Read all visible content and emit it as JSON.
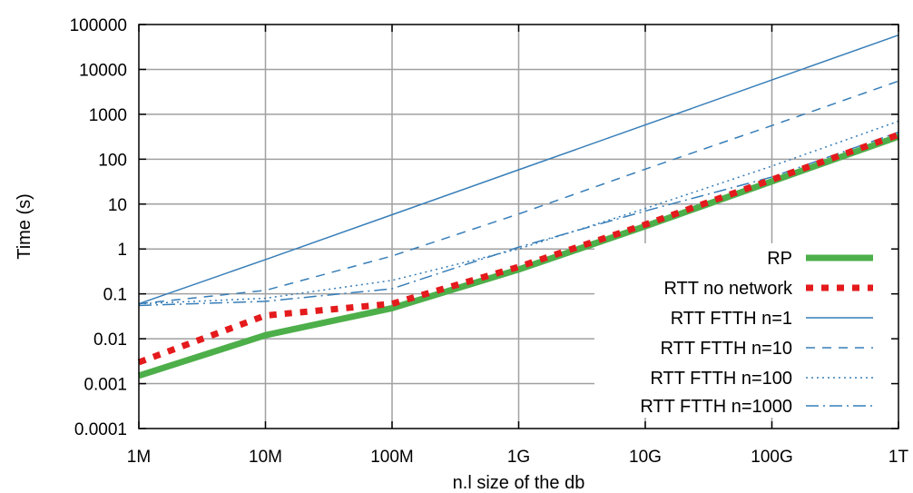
{
  "chart_data": {
    "type": "line",
    "xlabel": "n.l size of the db",
    "ylabel": "Time (s)",
    "x_scale": "log",
    "y_scale": "log",
    "xlim": [
      1000000,
      1000000000000
    ],
    "ylim": [
      0.0001,
      100000
    ],
    "grid": true,
    "legend_position": "bottom-right",
    "x_ticks": [
      {
        "value": 1000000,
        "label": "1M"
      },
      {
        "value": 10000000,
        "label": "10M"
      },
      {
        "value": 100000000,
        "label": "100M"
      },
      {
        "value": 1000000000,
        "label": "1G"
      },
      {
        "value": 10000000000,
        "label": "10G"
      },
      {
        "value": 100000000000,
        "label": "100G"
      },
      {
        "value": 1000000000000,
        "label": "1T"
      }
    ],
    "y_ticks": [
      {
        "value": 0.0001,
        "label": "0.0001"
      },
      {
        "value": 0.001,
        "label": "0.001"
      },
      {
        "value": 0.01,
        "label": "0.01"
      },
      {
        "value": 0.1,
        "label": "0.1"
      },
      {
        "value": 1,
        "label": "1"
      },
      {
        "value": 10,
        "label": "10"
      },
      {
        "value": 100,
        "label": "100"
      },
      {
        "value": 1000,
        "label": "1000"
      },
      {
        "value": 10000,
        "label": "10000"
      },
      {
        "value": 100000,
        "label": "100000"
      }
    ],
    "series": [
      {
        "name": "RP",
        "color": "#4daf4a",
        "style": "solid-thick",
        "points": [
          [
            1000000,
            0.0015
          ],
          [
            10000000,
            0.012
          ],
          [
            100000000,
            0.048
          ],
          [
            1000000000,
            0.35
          ],
          [
            10000000000,
            3.2
          ],
          [
            100000000000,
            32
          ],
          [
            1000000000000,
            320
          ]
        ]
      },
      {
        "name": "RTT no network",
        "color": "#e41a1c",
        "style": "dotted-thick",
        "points": [
          [
            1000000,
            0.003
          ],
          [
            10000000,
            0.033
          ],
          [
            100000000,
            0.06
          ],
          [
            1000000000,
            0.4
          ],
          [
            10000000000,
            3.5
          ],
          [
            100000000000,
            35
          ],
          [
            1000000000000,
            350
          ]
        ]
      },
      {
        "name": "RTT FTTH n=1",
        "color": "#377eb8",
        "style": "solid",
        "points": [
          [
            1000000,
            0.06
          ],
          [
            10000000,
            0.58
          ],
          [
            100000000,
            5.8
          ],
          [
            1000000000,
            58
          ],
          [
            10000000000,
            580
          ],
          [
            100000000000,
            5800
          ],
          [
            1000000000000,
            58000
          ]
        ]
      },
      {
        "name": "RTT FTTH n=10",
        "color": "#377eb8",
        "style": "dashed",
        "points": [
          [
            1000000,
            0.06
          ],
          [
            10000000,
            0.12
          ],
          [
            100000000,
            0.7
          ],
          [
            1000000000,
            6
          ],
          [
            10000000000,
            60
          ],
          [
            100000000000,
            560
          ],
          [
            1000000000000,
            5500
          ]
        ]
      },
      {
        "name": "RTT FTTH n=100",
        "color": "#377eb8",
        "style": "dotted",
        "points": [
          [
            1000000,
            0.06
          ],
          [
            10000000,
            0.08
          ],
          [
            100000000,
            0.2
          ],
          [
            1000000000,
            1.0
          ],
          [
            10000000000,
            8
          ],
          [
            100000000000,
            70
          ],
          [
            1000000000000,
            700
          ]
        ]
      },
      {
        "name": "RTT FTTH n=1000",
        "color": "#377eb8",
        "style": "dashdot",
        "points": [
          [
            1000000,
            0.055
          ],
          [
            10000000,
            0.068
          ],
          [
            100000000,
            0.13
          ],
          [
            1000000000,
            1.1
          ],
          [
            10000000000,
            7
          ],
          [
            100000000000,
            40
          ],
          [
            1000000000000,
            400
          ]
        ]
      }
    ]
  }
}
